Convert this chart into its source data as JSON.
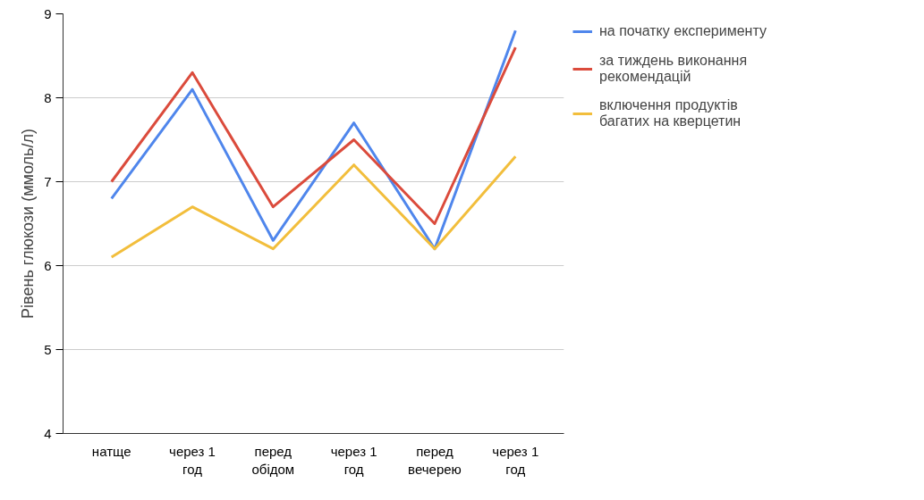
{
  "chart_data": {
    "type": "line",
    "ylabel": "Рівень глюкози (ммоль/л)",
    "categories": [
      "натще",
      "через 1 год",
      "перед обідом",
      "через 1 год",
      "перед вечерею",
      "через 1 год"
    ],
    "series": [
      {
        "name": "на початку експерименту",
        "color": "#4f86ec",
        "values": [
          6.8,
          8.1,
          6.3,
          7.7,
          6.2,
          8.8
        ]
      },
      {
        "name": "за тиждень виконання рекомендацій",
        "color": "#db4b3c",
        "values": [
          7.0,
          8.3,
          6.7,
          7.5,
          6.5,
          8.6
        ]
      },
      {
        "name": "включення продуктів багатих на кверцетин",
        "color": "#f2be3c",
        "values": [
          6.1,
          6.7,
          6.2,
          7.2,
          6.2,
          7.3
        ]
      }
    ],
    "ylim": [
      4,
      9
    ],
    "yticks": [
      4,
      5,
      6,
      7,
      8,
      9
    ],
    "grid": "y",
    "legend": "top right",
    "marker": "none",
    "line_style": "solid"
  }
}
